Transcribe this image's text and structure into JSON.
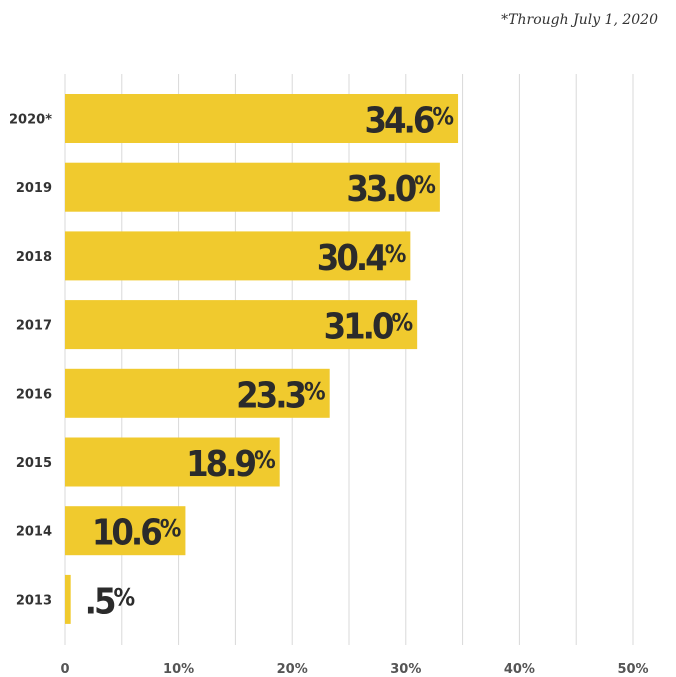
{
  "footnote": "*Through July 1, 2020",
  "colors": {
    "bar": "#f0ca2e",
    "grid": "#d9d9d9",
    "text": "#2b2b2b"
  },
  "chart_data": {
    "type": "bar",
    "orientation": "horizontal",
    "categories": [
      "2020*",
      "2019",
      "2018",
      "2017",
      "2016",
      "2015",
      "2014",
      "2013"
    ],
    "values": [
      34.6,
      33.0,
      30.4,
      31.0,
      23.3,
      18.9,
      10.6,
      0.5
    ],
    "value_labels": [
      "34.6",
      "33.0",
      "30.4",
      "31.0",
      "23.3",
      "18.9",
      "10.6",
      ".5"
    ],
    "value_suffix": "%",
    "x_ticks": [
      0,
      10,
      20,
      30,
      40,
      50
    ],
    "x_tick_labels": [
      "0",
      "10%",
      "20%",
      "30%",
      "40%",
      "50%"
    ],
    "xlim": [
      0,
      50
    ],
    "grid": true
  }
}
